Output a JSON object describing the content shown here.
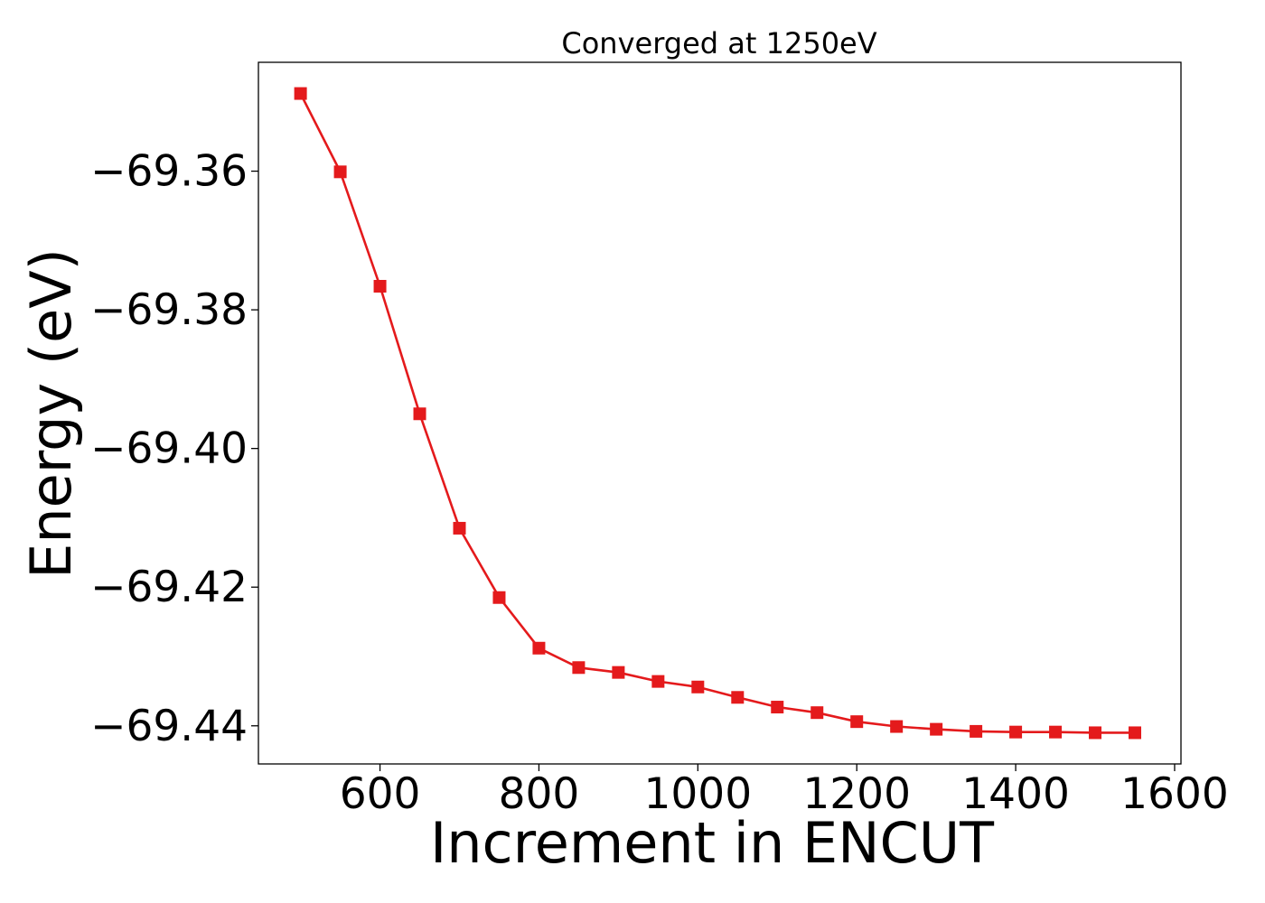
{
  "chart_data": {
    "type": "line",
    "title": "Converged at 1250eV",
    "xlabel": "Increment in ENCUT",
    "ylabel": "Energy (eV)",
    "xlim": [
      447,
      1608
    ],
    "ylim": [
      -69.4455,
      -69.3443
    ],
    "xticks": [
      600,
      800,
      1000,
      1200,
      1400,
      1600
    ],
    "xtick_labels": [
      "600",
      "800",
      "1000",
      "1200",
      "1400",
      "1600"
    ],
    "yticks": [
      -69.36,
      -69.38,
      -69.4,
      -69.42,
      -69.44
    ],
    "ytick_labels": [
      "−69.36",
      "−69.38",
      "−69.40",
      "−69.42",
      "−69.44"
    ],
    "grid": false,
    "marker": "square",
    "color": "#e41a1c",
    "series": [
      {
        "x": [
          500,
          550,
          600,
          650,
          700,
          750,
          800,
          850,
          900,
          950,
          1000,
          1050,
          1100,
          1150,
          1200,
          1250,
          1300,
          1350,
          1400,
          1450,
          1500,
          1550
        ],
        "y": [
          -69.3488,
          -69.3601,
          -69.3766,
          -69.395,
          -69.4115,
          -69.4215,
          -69.4288,
          -69.4316,
          -69.4323,
          -69.4336,
          -69.4344,
          -69.4359,
          -69.4373,
          -69.4381,
          -69.4394,
          -69.4401,
          -69.4405,
          -69.4408,
          -69.4409,
          -69.4409,
          -69.441,
          -69.441
        ]
      }
    ]
  }
}
